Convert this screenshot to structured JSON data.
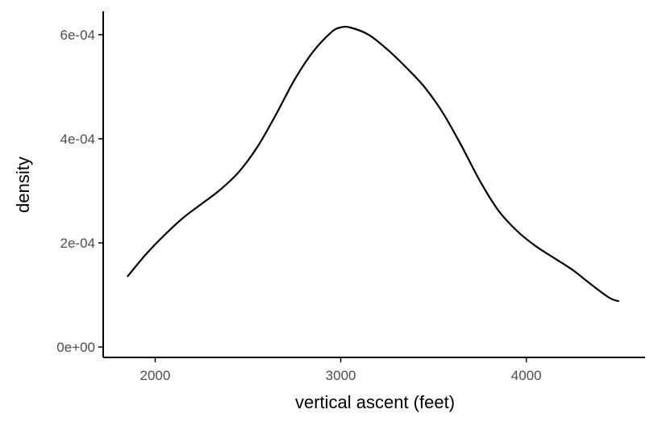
{
  "chart_data": {
    "type": "area",
    "title": "",
    "xlabel": "vertical ascent (feet)",
    "ylabel": "density",
    "xlim": [
      1720,
      4640
    ],
    "ylim": [
      -2e-05,
      0.000645
    ],
    "x_ticks": [
      2000,
      3000,
      4000
    ],
    "x_tick_labels": [
      "2000",
      "3000",
      "4000"
    ],
    "y_ticks": [
      0,
      0.0002,
      0.0004,
      0.0006
    ],
    "y_tick_labels": [
      "0e+00",
      "2e-04",
      "4e-04",
      "6e-04"
    ],
    "grid": false,
    "legend": "none",
    "colors": {
      "line": "#000000",
      "axis": "#000000",
      "tick_label": "#4d4d4d",
      "background": "#ffffff"
    },
    "series": [
      {
        "x": [
          1850,
          1950,
          2050,
          2150,
          2250,
          2350,
          2450,
          2550,
          2650,
          2750,
          2850,
          2950,
          3000,
          3050,
          3150,
          3250,
          3350,
          3450,
          3550,
          3650,
          3750,
          3850,
          3950,
          4050,
          4150,
          4250,
          4350,
          4450,
          4500
        ],
        "y": [
          0.000135,
          0.000178,
          0.000215,
          0.000248,
          0.000275,
          0.000302,
          0.000336,
          0.000384,
          0.000446,
          0.000513,
          0.000567,
          0.000605,
          0.000614,
          0.000614,
          0.0006,
          0.000572,
          0.000538,
          0.0005,
          0.00045,
          0.000387,
          0.000319,
          0.000262,
          0.000223,
          0.000194,
          0.000171,
          0.000148,
          0.00012,
          9.4e-05,
          8.8e-05
        ]
      }
    ]
  }
}
